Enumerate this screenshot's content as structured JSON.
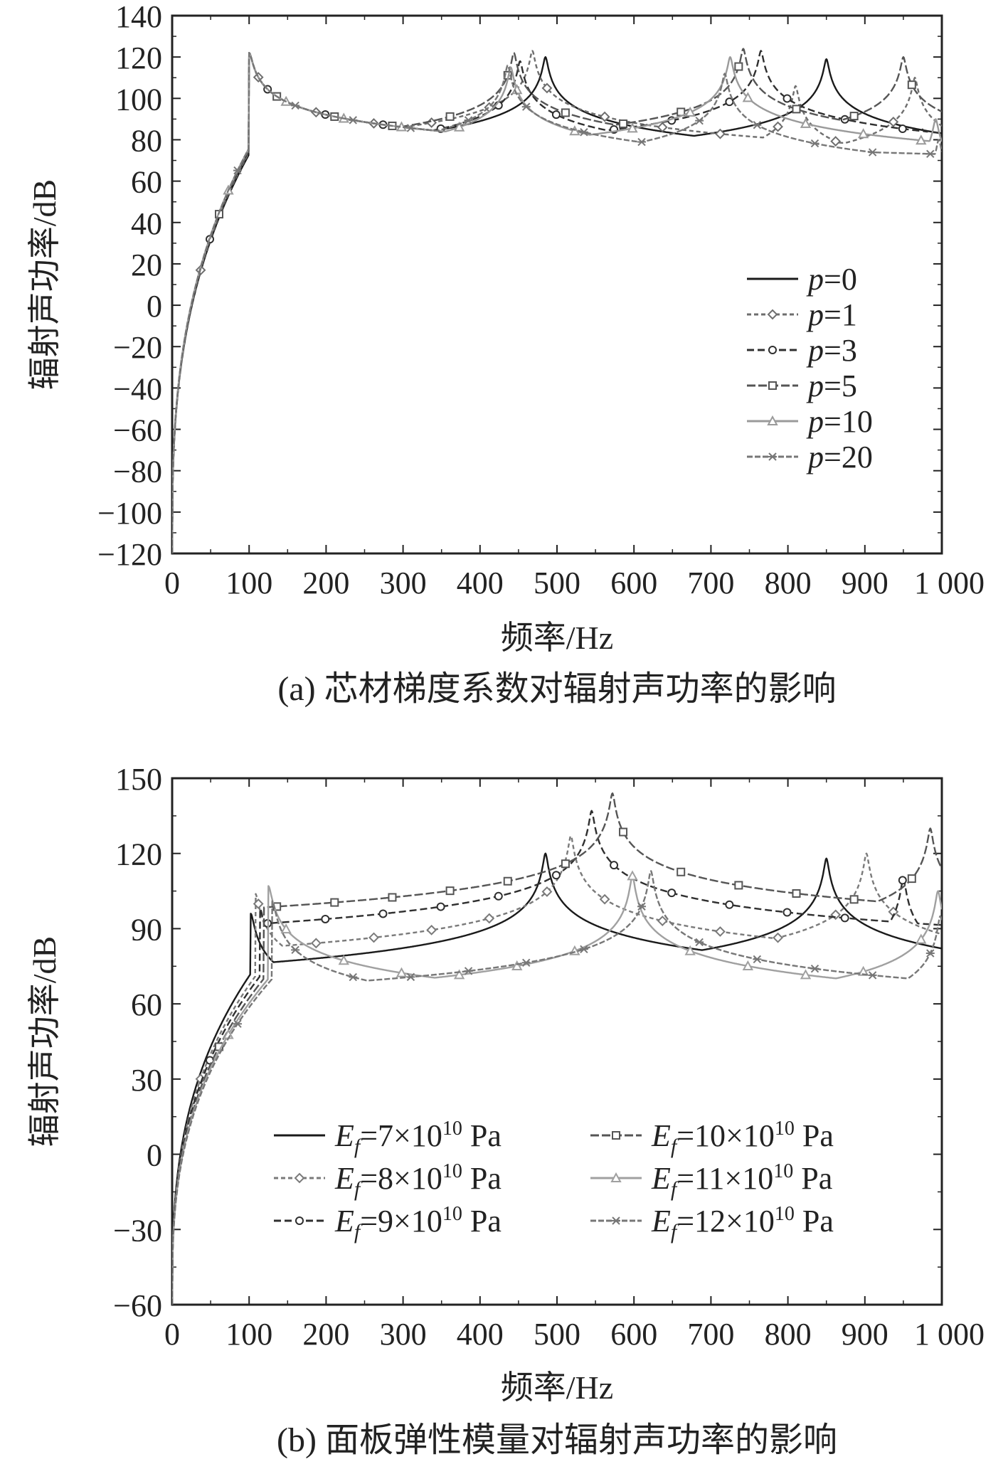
{
  "chart_data": [
    {
      "id": "a",
      "type": "line",
      "caption": "(a) 芯材梯度系数对辐射声功率的影响",
      "xlabel": "频率/Hz",
      "ylabel": "辐射声功率/dB",
      "xlim": [
        0,
        1000
      ],
      "ylim": [
        -120,
        140
      ],
      "xticks": [
        "0",
        "100",
        "200",
        "300",
        "400",
        "500",
        "600",
        "700",
        "800",
        "900",
        "1 000"
      ],
      "yticks": [
        "140",
        "120",
        "100",
        "80",
        "60",
        "40",
        "20",
        "0",
        "−20",
        "−40",
        "−60",
        "−80",
        "−100",
        "−120"
      ],
      "ytick_values": [
        140,
        120,
        100,
        80,
        60,
        40,
        20,
        0,
        -20,
        -40,
        -60,
        -80,
        -100,
        -120
      ],
      "legend_position": "right-middle",
      "series": [
        {
          "name": "p=0",
          "prefix": "p",
          "suffix": "=0",
          "color": "#1a1a1a",
          "marker": "none",
          "dash": "none",
          "peaks": [
            [
              100,
              122
            ],
            [
              485,
              120
            ],
            [
              850,
              119
            ]
          ],
          "base": 61
        },
        {
          "name": "p=1",
          "prefix": "p",
          "suffix": "=1",
          "color": "#6e6e6e",
          "marker": "diamond",
          "dash": "6,4",
          "peaks": [
            [
              100,
              122
            ],
            [
              468,
              123
            ],
            [
              810,
              106
            ],
            [
              965,
              110
            ]
          ],
          "base": 62
        },
        {
          "name": "p=3",
          "prefix": "p",
          "suffix": "=3",
          "color": "#2f2f2f",
          "marker": "circle",
          "dash": "10,5",
          "peaks": [
            [
              100,
              122
            ],
            [
              452,
              118
            ],
            [
              765,
              123
            ],
            [
              975,
              85
            ]
          ],
          "base": 63
        },
        {
          "name": "p=5",
          "prefix": "p",
          "suffix": "=5",
          "color": "#555555",
          "marker": "square",
          "dash": "12,4",
          "peaks": [
            [
              100,
              122
            ],
            [
              444,
              122
            ],
            [
              742,
              124
            ],
            [
              950,
              120
            ]
          ],
          "base": 63
        },
        {
          "name": "p=10",
          "prefix": "p",
          "suffix": "=10",
          "color": "#9a9a9a",
          "marker": "triangle",
          "dash": "none",
          "peaks": [
            [
              100,
              122
            ],
            [
              440,
              115
            ],
            [
              725,
              120
            ],
            [
              992,
              90
            ]
          ],
          "base": 64
        },
        {
          "name": "p=20",
          "prefix": "p",
          "suffix": "=20",
          "color": "#777777",
          "marker": "star",
          "dash": "8,3",
          "peaks": [
            [
              100,
              122
            ],
            [
              436,
              116
            ],
            [
              718,
              112
            ],
            [
              996,
              80
            ]
          ],
          "base": 64
        }
      ]
    },
    {
      "id": "b",
      "type": "line",
      "caption": "(b) 面板弹性模量对辐射声功率的影响",
      "xlabel": "频率/Hz",
      "ylabel": "辐射声功率/dB",
      "xlim": [
        0,
        1000
      ],
      "ylim": [
        -60,
        150
      ],
      "xticks": [
        "0",
        "100",
        "200",
        "300",
        "400",
        "500",
        "600",
        "700",
        "800",
        "900",
        "1 000"
      ],
      "yticks": [
        "150",
        "120",
        "90",
        "60",
        "30",
        "0",
        "−30",
        "−60"
      ],
      "ytick_values": [
        150,
        120,
        90,
        60,
        30,
        0,
        -30,
        -60
      ],
      "legend_position": "bottom",
      "series": [
        {
          "name": "Ef=7×10^10 Pa",
          "prefix": "E",
          "sub": "f",
          "mid": "=7×10",
          "sup": "10",
          "suffix": " Pa",
          "color": "#1a1a1a",
          "marker": "none",
          "dash": "none",
          "peaks": [
            [
              102,
              96
            ],
            [
              485,
              120
            ],
            [
              850,
              118
            ]
          ],
          "base": 60
        },
        {
          "name": "Ef=8×10^10 Pa",
          "prefix": "E",
          "sub": "f",
          "mid": "=8×10",
          "sup": "10",
          "suffix": " Pa",
          "color": "#7a7a7a",
          "marker": "diamond",
          "dash": "6,4",
          "peaks": [
            [
              108,
              104
            ],
            [
              518,
              127
            ],
            [
              902,
              120
            ]
          ],
          "base": 59
        },
        {
          "name": "Ef=9×10^10 Pa",
          "prefix": "E",
          "sub": "f",
          "mid": "=9×10",
          "sup": "10",
          "suffix": " Pa",
          "color": "#2f2f2f",
          "marker": "circle",
          "dash": "10,5",
          "peaks": [
            [
              114,
              98
            ],
            [
              545,
              137
            ],
            [
              950,
              110
            ]
          ],
          "base": 59
        },
        {
          "name": "Ef=10×10^10 Pa",
          "prefix": "E",
          "sub": "f",
          "mid": "=10×10",
          "sup": "10",
          "suffix": " Pa",
          "color": "#555555",
          "marker": "square",
          "dash": "12,4",
          "peaks": [
            [
              119,
              98
            ],
            [
              572,
              144
            ],
            [
              985,
              130
            ]
          ],
          "base": 58
        },
        {
          "name": "Ef=11×10^10 Pa",
          "prefix": "E",
          "sub": "f",
          "mid": "=11×10",
          "sup": "10",
          "suffix": " Pa",
          "color": "#a0a0a0",
          "marker": "triangle",
          "dash": "none",
          "peaks": [
            [
              125,
              107
            ],
            [
              598,
              111
            ],
            [
              995,
              105
            ]
          ],
          "base": 58
        },
        {
          "name": "Ef=12×10^10 Pa",
          "prefix": "E",
          "sub": "f",
          "mid": "=12×10",
          "sup": "10",
          "suffix": " Pa",
          "color": "#777777",
          "marker": "star",
          "dash": "8,3",
          "peaks": [
            [
              130,
              101
            ],
            [
              622,
              113
            ],
            [
              998,
              95
            ]
          ],
          "base": 58
        }
      ]
    }
  ]
}
